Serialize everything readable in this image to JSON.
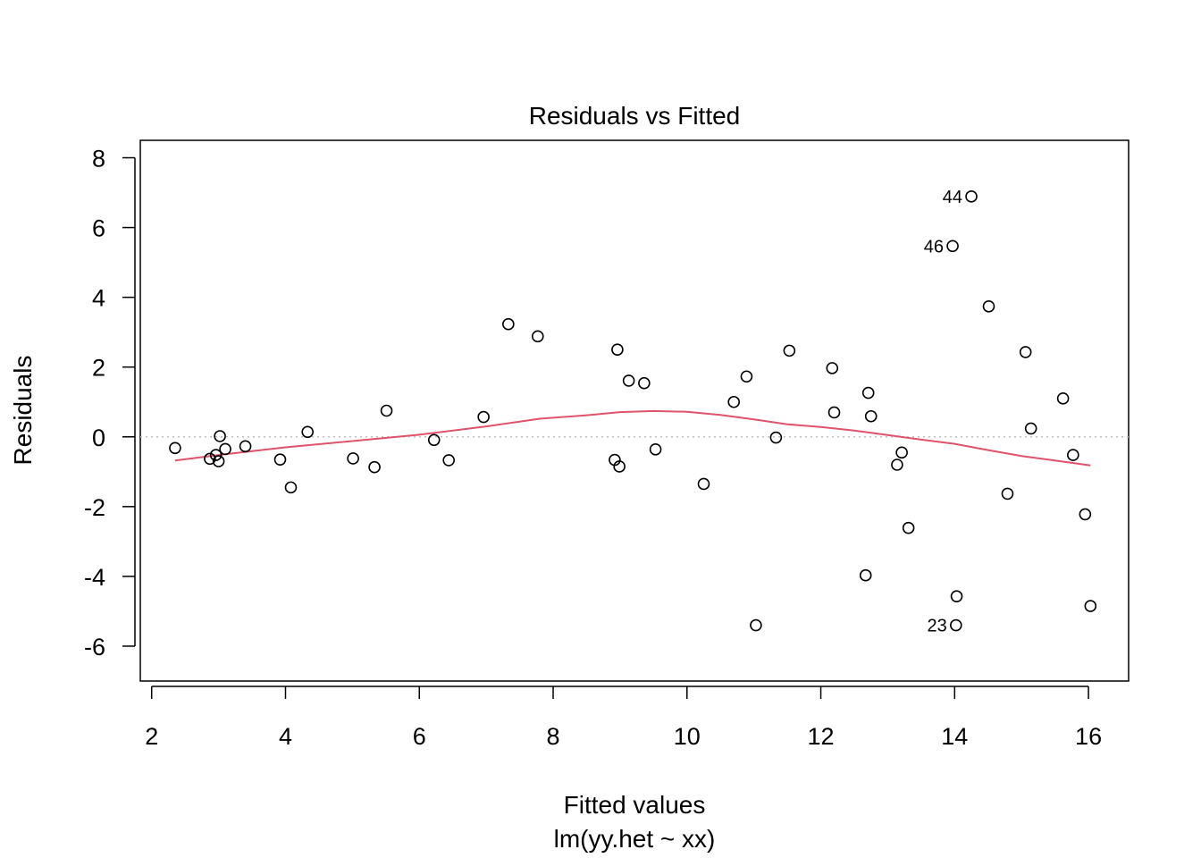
{
  "chart_data": {
    "type": "scatter",
    "title": "Residuals vs Fitted",
    "xlabel": "Fitted values",
    "subtitle": "lm(yy.het ~ xx)",
    "ylabel": "Residuals",
    "xlim": [
      1.83,
      16.6
    ],
    "ylim": [
      -7,
      8.5
    ],
    "xticks": [
      2,
      4,
      6,
      8,
      10,
      12,
      14,
      16
    ],
    "xtick_labels": [
      "2",
      "4",
      "6",
      "8",
      "10",
      "12",
      "14",
      "16"
    ],
    "yticks": [
      -6,
      -4,
      -2,
      0,
      2,
      4,
      6,
      8
    ],
    "ytick_labels": [
      "-6",
      "-4",
      "-2",
      "0",
      "2",
      "4",
      "6",
      "8"
    ],
    "reference_line": {
      "y": 0,
      "style": "dotted",
      "color": "#bebebe"
    },
    "points": [
      {
        "x": 2.35,
        "y": -0.32
      },
      {
        "x": 2.87,
        "y": -0.63
      },
      {
        "x": 2.96,
        "y": -0.52
      },
      {
        "x": 3.0,
        "y": -0.7
      },
      {
        "x": 3.02,
        "y": 0.02
      },
      {
        "x": 3.1,
        "y": -0.35
      },
      {
        "x": 3.4,
        "y": -0.27
      },
      {
        "x": 3.92,
        "y": -0.65
      },
      {
        "x": 4.08,
        "y": -1.45
      },
      {
        "x": 4.33,
        "y": 0.14
      },
      {
        "x": 5.01,
        "y": -0.62
      },
      {
        "x": 5.33,
        "y": -0.87
      },
      {
        "x": 5.51,
        "y": 0.75
      },
      {
        "x": 6.22,
        "y": -0.09
      },
      {
        "x": 6.44,
        "y": -0.67
      },
      {
        "x": 6.96,
        "y": 0.57
      },
      {
        "x": 7.33,
        "y": 3.23
      },
      {
        "x": 7.77,
        "y": 2.88
      },
      {
        "x": 8.92,
        "y": -0.66
      },
      {
        "x": 8.96,
        "y": 2.5
      },
      {
        "x": 8.99,
        "y": -0.85
      },
      {
        "x": 9.13,
        "y": 1.61
      },
      {
        "x": 9.36,
        "y": 1.54
      },
      {
        "x": 9.53,
        "y": -0.36
      },
      {
        "x": 10.25,
        "y": -1.35
      },
      {
        "x": 10.7,
        "y": 1.0
      },
      {
        "x": 10.89,
        "y": 1.73
      },
      {
        "x": 11.03,
        "y": -5.4
      },
      {
        "x": 11.33,
        "y": -0.02
      },
      {
        "x": 11.53,
        "y": 2.47
      },
      {
        "x": 12.17,
        "y": 1.97
      },
      {
        "x": 12.2,
        "y": 0.7
      },
      {
        "x": 12.67,
        "y": -3.97
      },
      {
        "x": 12.71,
        "y": 1.26
      },
      {
        "x": 12.75,
        "y": 0.59
      },
      {
        "x": 13.14,
        "y": -0.8
      },
      {
        "x": 13.21,
        "y": -0.45
      },
      {
        "x": 13.31,
        "y": -2.61
      },
      {
        "x": 13.97,
        "y": 5.47,
        "label": "46"
      },
      {
        "x": 14.02,
        "y": -5.4,
        "label": "23"
      },
      {
        "x": 14.03,
        "y": -4.57
      },
      {
        "x": 14.25,
        "y": 6.89,
        "label": "44"
      },
      {
        "x": 14.51,
        "y": 3.74
      },
      {
        "x": 14.79,
        "y": -1.63
      },
      {
        "x": 15.06,
        "y": 2.43
      },
      {
        "x": 15.14,
        "y": 0.24
      },
      {
        "x": 15.62,
        "y": 1.1
      },
      {
        "x": 15.77,
        "y": -0.52
      },
      {
        "x": 15.95,
        "y": -2.22
      },
      {
        "x": 16.03,
        "y": -4.85
      }
    ],
    "smooth_line": {
      "color": "#df536b",
      "x": [
        2.35,
        3.0,
        4.0,
        5.0,
        6.0,
        7.0,
        7.8,
        8.5,
        9.0,
        9.5,
        10.0,
        10.5,
        11.0,
        11.5,
        12.0,
        12.5,
        13.0,
        13.5,
        14.0,
        14.5,
        15.0,
        15.5,
        16.03
      ],
      "y": [
        -0.68,
        -0.52,
        -0.3,
        -0.12,
        0.06,
        0.3,
        0.52,
        0.62,
        0.71,
        0.74,
        0.72,
        0.63,
        0.5,
        0.36,
        0.28,
        0.18,
        0.05,
        -0.08,
        -0.2,
        -0.38,
        -0.55,
        -0.68,
        -0.82
      ]
    }
  }
}
